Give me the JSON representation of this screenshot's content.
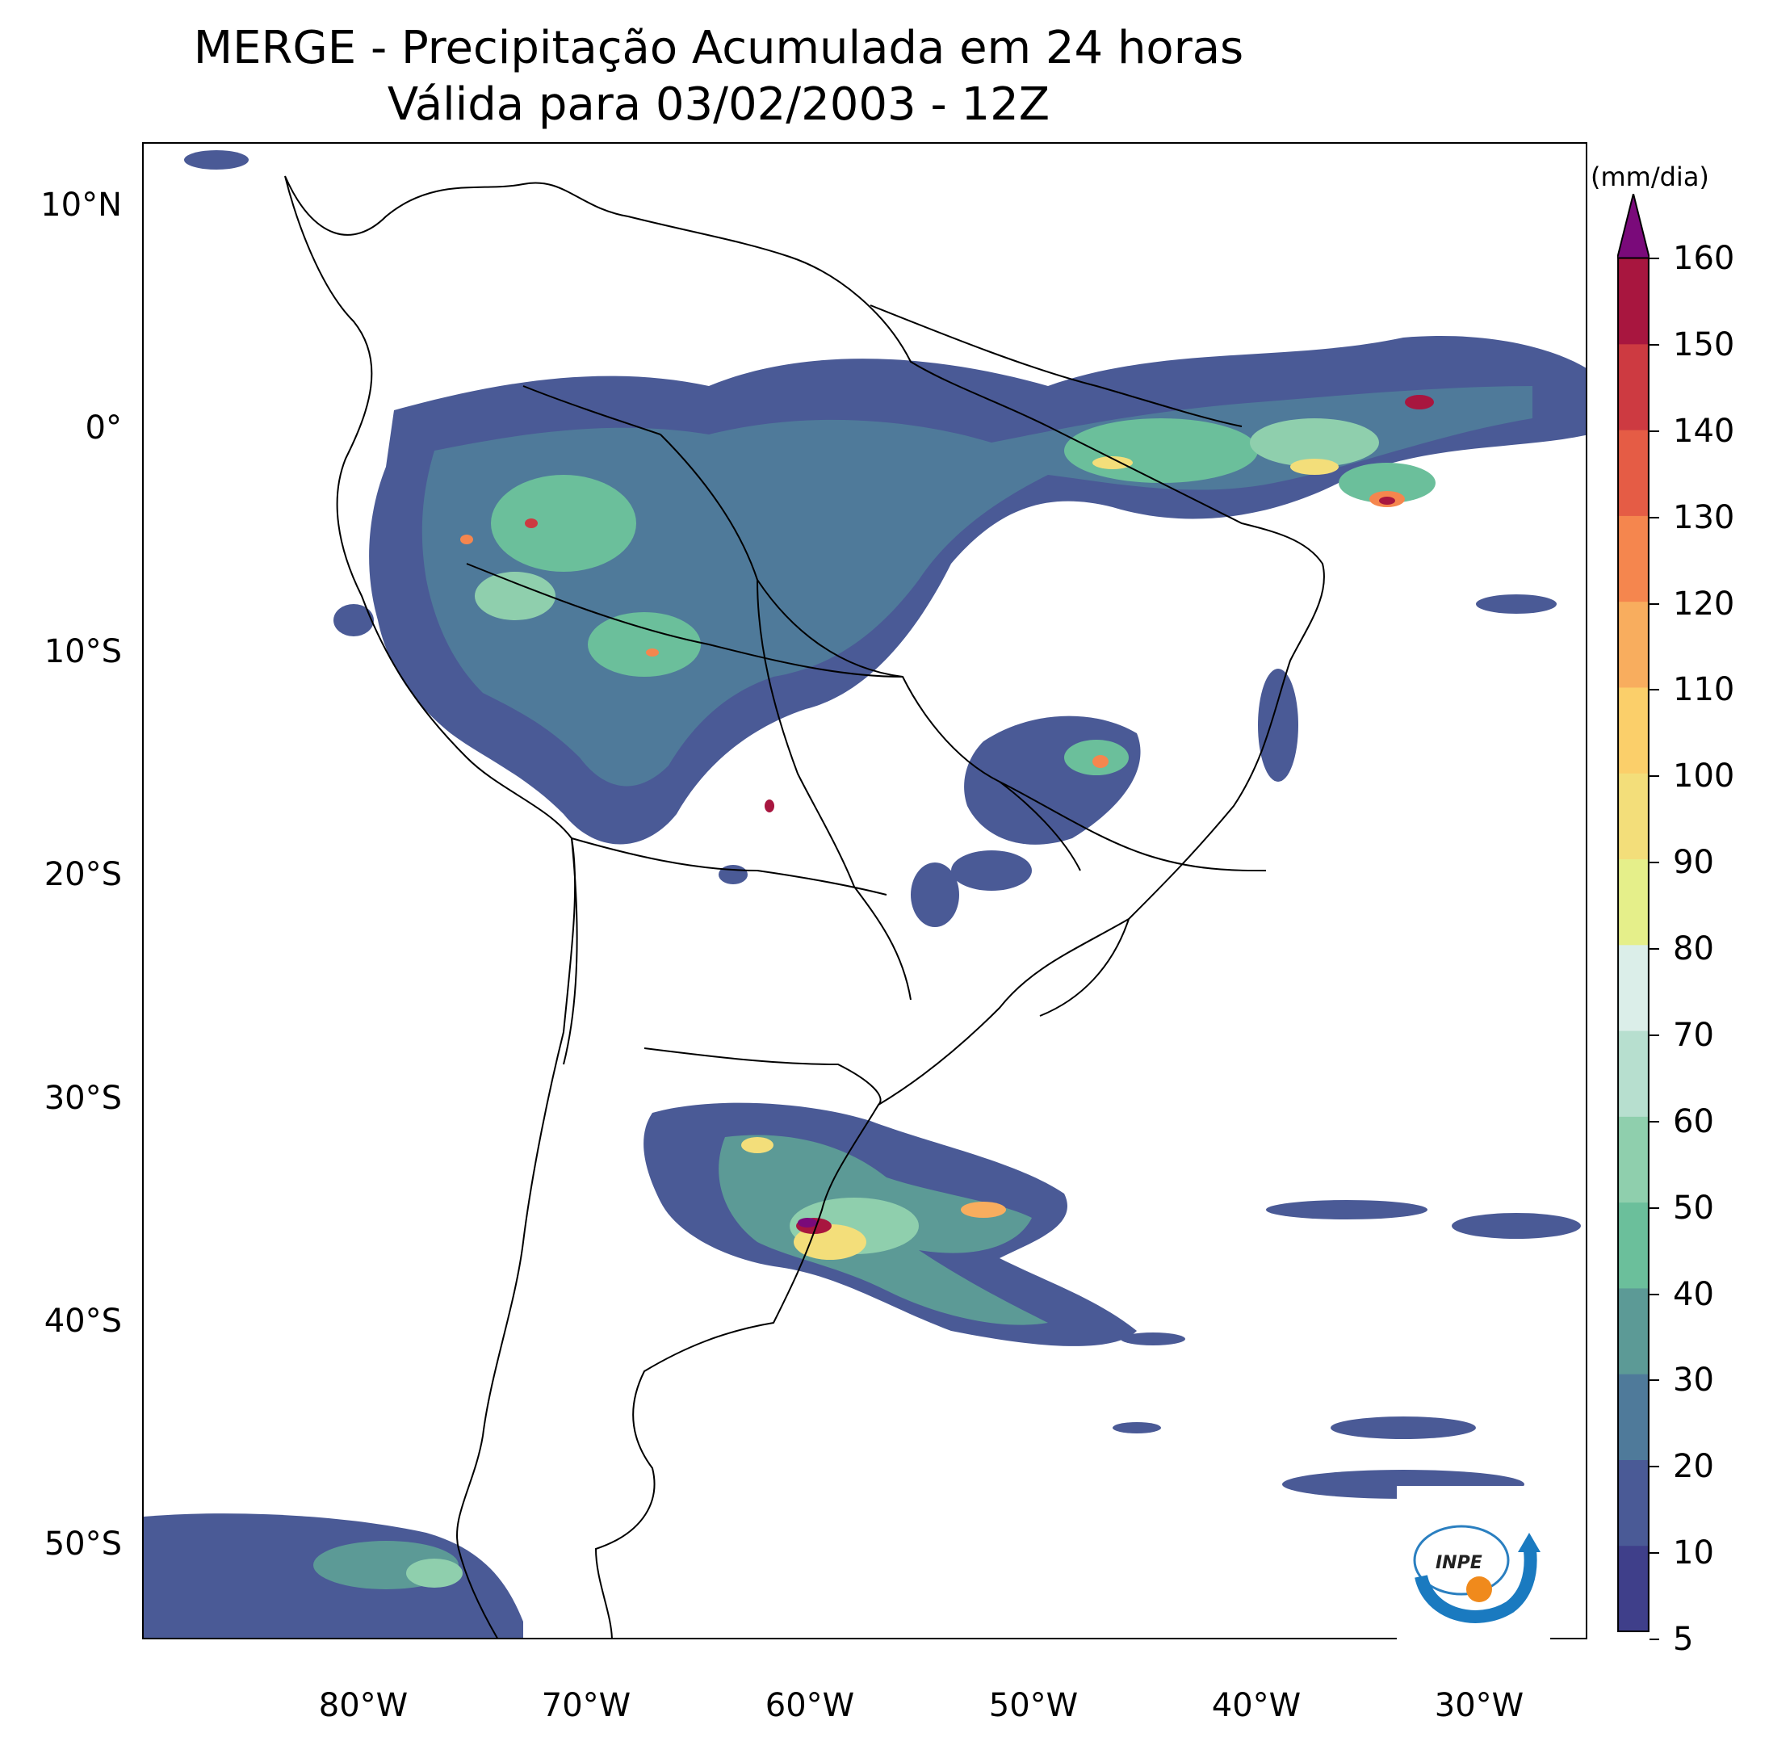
{
  "title_line1": "MERGE - Precipitação Acumulada em 24 horas",
  "title_line2": "Válida para 03/02/2003 - 12Z",
  "lat_labels": [
    "10°N",
    "0°",
    "10°S",
    "20°S",
    "30°S",
    "40°S",
    "50°S"
  ],
  "lon_labels": [
    "80°W",
    "70°W",
    "60°W",
    "50°W",
    "40°W",
    "30°W"
  ],
  "colorbar": {
    "unit": "(mm/dia)",
    "tick_labels": [
      "5",
      "10",
      "20",
      "30",
      "40",
      "50",
      "60",
      "70",
      "80",
      "90",
      "100",
      "110",
      "120",
      "130",
      "140",
      "150",
      "160"
    ],
    "extend": "max",
    "colors": [
      "#3f3f8a",
      "#4a5a96",
      "#4f7a9a",
      "#5c9a96",
      "#6bbf9b",
      "#8fcfad",
      "#b7dfcf",
      "#dbeee9",
      "#e5ef8a",
      "#f3de7a",
      "#fbcf6a",
      "#f8ad5e",
      "#f5864e",
      "#e55c45",
      "#cd3a41",
      "#a8163f",
      "#7a0a7a"
    ]
  },
  "logo_text": "INPE"
}
